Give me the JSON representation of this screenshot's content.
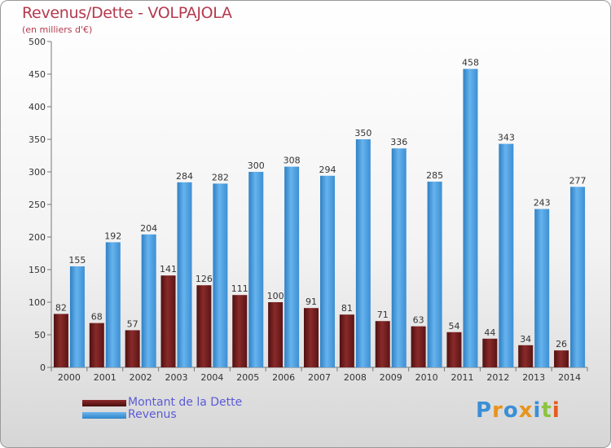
{
  "header": {
    "title": "Revenus/Dette - VOLPAJOLA",
    "subtitle": "(en milliers d'€)"
  },
  "legend": {
    "items": [
      {
        "label": "Montant de la Dette",
        "color": "#6b1c1c"
      },
      {
        "label": "Revenus",
        "color": "#4a9ee0"
      }
    ]
  },
  "logo": {
    "letters": [
      "P",
      "r",
      "o",
      "x",
      "i",
      "t",
      "i"
    ],
    "colors": [
      "#3a8fd6",
      "#e8931c",
      "#3a8fd6",
      "#e8931c",
      "#3a8fd6",
      "#8cc43f",
      "#e85a1c"
    ]
  },
  "chart_data": {
    "type": "bar",
    "title": "Revenus/Dette - VOLPAJOLA",
    "subtitle": "(en milliers d'€)",
    "categories": [
      "2000",
      "2001",
      "2002",
      "2003",
      "2004",
      "2005",
      "2006",
      "2007",
      "2008",
      "2009",
      "2010",
      "2011",
      "2012",
      "2013",
      "2014"
    ],
    "series": [
      {
        "name": "Montant de la Dette",
        "color": "#6b1c1c",
        "values": [
          82,
          68,
          57,
          141,
          126,
          111,
          100,
          91,
          81,
          71,
          63,
          54,
          44,
          34,
          26
        ]
      },
      {
        "name": "Revenus",
        "color": "#4a9ee0",
        "values": [
          155,
          192,
          204,
          284,
          282,
          300,
          308,
          294,
          350,
          336,
          285,
          458,
          343,
          243,
          277
        ]
      }
    ],
    "ylim": [
      0,
      500
    ],
    "yticks": [
      0,
      50,
      100,
      150,
      200,
      250,
      300,
      350,
      400,
      450,
      500
    ],
    "grid": false,
    "legend_position": "bottom-left"
  }
}
